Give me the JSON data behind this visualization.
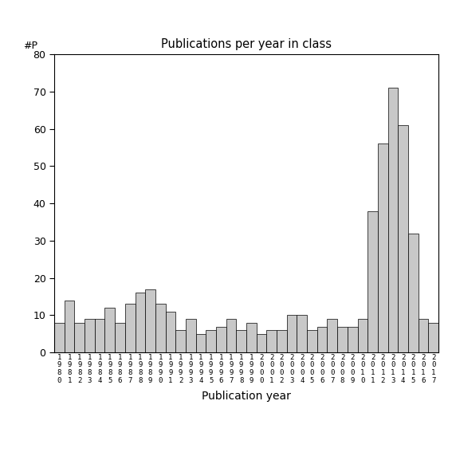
{
  "title": "Publications per year in class",
  "xlabel": "Publication year",
  "ylabel": "#P",
  "ylim": [
    0,
    80
  ],
  "yticks": [
    0,
    10,
    20,
    30,
    40,
    50,
    60,
    70,
    80
  ],
  "bar_color": "#c8c8c8",
  "bar_edgecolor": "#000000",
  "background_color": "#ffffff",
  "years": [
    "1980",
    "1981",
    "1982",
    "1983",
    "1984",
    "1985",
    "1986",
    "1987",
    "1988",
    "1989",
    "1990",
    "1991",
    "1992",
    "1993",
    "1994",
    "1995",
    "1996",
    "1997",
    "1998",
    "1999",
    "2000",
    "2001",
    "2002",
    "2003",
    "2004",
    "2005",
    "2006",
    "2007",
    "2008",
    "2009",
    "2010",
    "2011",
    "2012",
    "2013",
    "2014",
    "2015",
    "2016",
    "2017"
  ],
  "values": [
    8,
    14,
    8,
    9,
    9,
    12,
    8,
    13,
    16,
    17,
    13,
    11,
    6,
    9,
    5,
    6,
    7,
    9,
    6,
    8,
    5,
    6,
    6,
    10,
    10,
    6,
    7,
    9,
    7,
    7,
    9,
    38,
    56,
    71,
    61,
    32,
    9,
    8
  ]
}
